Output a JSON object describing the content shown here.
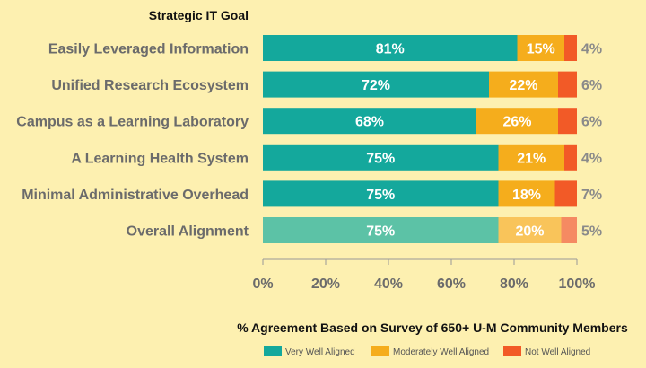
{
  "chart_data": {
    "type": "bar",
    "orientation": "horizontal",
    "stacked": true,
    "column_header": "Strategic IT Goal",
    "xlabel": "% Agreement Based on Survey of 650+ U-M Community Members",
    "categories": [
      "Easily Leveraged Information",
      "Unified Research Ecosystem",
      "Campus as a Learning Laboratory",
      "A Learning Health System",
      "Minimal Administrative Overhead",
      "Overall Alignment"
    ],
    "series": [
      {
        "name": "Very Well Aligned",
        "values": [
          81,
          72,
          68,
          75,
          75,
          75
        ],
        "color": "#14a89c",
        "highlight_color": "#5cc2a6",
        "labels": [
          "81%",
          "72%",
          "68%",
          "75%",
          "75%",
          "75%"
        ]
      },
      {
        "name": "Moderately Well Aligned",
        "values": [
          15,
          22,
          26,
          21,
          18,
          20
        ],
        "color": "#f5ad1c",
        "highlight_color": "#f9c45a",
        "labels": [
          "15%",
          "22%",
          "26%",
          "21%",
          "18%",
          "20%"
        ]
      },
      {
        "name": "Not Well Aligned",
        "values": [
          4,
          6,
          6,
          4,
          7,
          5
        ],
        "color": "#f25a27",
        "highlight_color": "#f58a62",
        "labels": [
          "4%",
          "6%",
          "6%",
          "4%",
          "7%",
          "5%"
        ]
      }
    ],
    "highlighted_category": "Overall Alignment",
    "xlim": [
      0,
      100
    ],
    "xticks": [
      "0%",
      "20%",
      "40%",
      "60%",
      "80%",
      "100%"
    ],
    "grid": false,
    "legend_position": "bottom-right"
  }
}
